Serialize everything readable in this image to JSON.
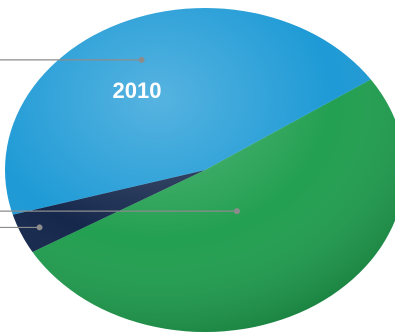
{
  "chart_data": {
    "type": "pie",
    "title": "2010",
    "start_angle_deg": 56,
    "slices": [
      {
        "value": 51,
        "color": "#1a9c4a"
      },
      {
        "value": 4,
        "color": "#0b1f45"
      },
      {
        "value": 45,
        "color": "#1596d4"
      }
    ],
    "leaders": [
      {
        "slice": 0
      },
      {
        "slice": 2
      },
      {
        "slice": 1
      }
    ],
    "colors": {
      "leader_line": "#8c8c8c",
      "title_text": "#ffffff"
    }
  }
}
